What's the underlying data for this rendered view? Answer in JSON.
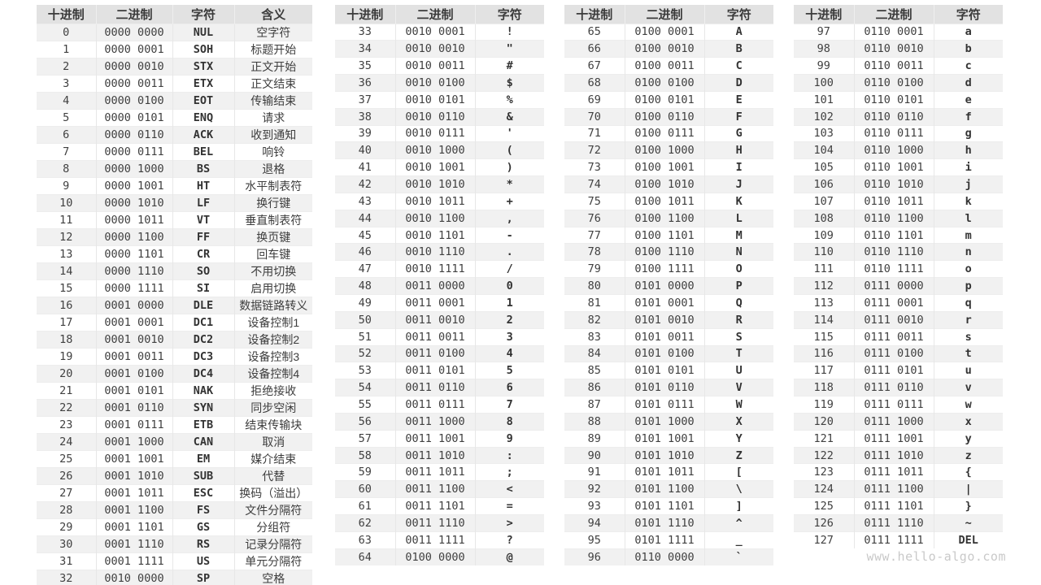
{
  "watermark": "www.hello-algo.com",
  "colors": {
    "header_bg": "#e2e2e2",
    "stripe_bg": "#f1f1f1",
    "row_bg": "#ffffff",
    "text": "#404040",
    "watermark_text": "#c9c9c9"
  },
  "cell_names": [
    "decimal-cell",
    "binary-cell",
    "char-cell",
    "meaning-cell"
  ],
  "tables": [
    {
      "headers": [
        "十进制",
        "二进制",
        "字符",
        "含义"
      ],
      "rows": [
        [
          "0",
          "0000 0000",
          "NUL",
          "空字符"
        ],
        [
          "1",
          "0000 0001",
          "SOH",
          "标题开始"
        ],
        [
          "2",
          "0000 0010",
          "STX",
          "正文开始"
        ],
        [
          "3",
          "0000 0011",
          "ETX",
          "正文结束"
        ],
        [
          "4",
          "0000 0100",
          "EOT",
          "传输结束"
        ],
        [
          "5",
          "0000 0101",
          "ENQ",
          "请求"
        ],
        [
          "6",
          "0000 0110",
          "ACK",
          "收到通知"
        ],
        [
          "7",
          "0000 0111",
          "BEL",
          "响铃"
        ],
        [
          "8",
          "0000 1000",
          "BS",
          "退格"
        ],
        [
          "9",
          "0000 1001",
          "HT",
          "水平制表符"
        ],
        [
          "10",
          "0000 1010",
          "LF",
          "换行键"
        ],
        [
          "11",
          "0000 1011",
          "VT",
          "垂直制表符"
        ],
        [
          "12",
          "0000 1100",
          "FF",
          "换页键"
        ],
        [
          "13",
          "0000 1101",
          "CR",
          "回车键"
        ],
        [
          "14",
          "0000 1110",
          "SO",
          "不用切换"
        ],
        [
          "15",
          "0000 1111",
          "SI",
          "启用切换"
        ],
        [
          "16",
          "0001 0000",
          "DLE",
          "数据链路转义"
        ],
        [
          "17",
          "0001 0001",
          "DC1",
          "设备控制1"
        ],
        [
          "18",
          "0001 0010",
          "DC2",
          "设备控制2"
        ],
        [
          "19",
          "0001 0011",
          "DC3",
          "设备控制3"
        ],
        [
          "20",
          "0001 0100",
          "DC4",
          "设备控制4"
        ],
        [
          "21",
          "0001 0101",
          "NAK",
          "拒绝接收"
        ],
        [
          "22",
          "0001 0110",
          "SYN",
          "同步空闲"
        ],
        [
          "23",
          "0001 0111",
          "ETB",
          "结束传输块"
        ],
        [
          "24",
          "0001 1000",
          "CAN",
          "取消"
        ],
        [
          "25",
          "0001 1001",
          "EM",
          "媒介结束"
        ],
        [
          "26",
          "0001 1010",
          "SUB",
          "代替"
        ],
        [
          "27",
          "0001 1011",
          "ESC",
          "换码（溢出）"
        ],
        [
          "28",
          "0001 1100",
          "FS",
          "文件分隔符"
        ],
        [
          "29",
          "0001 1101",
          "GS",
          "分组符"
        ],
        [
          "30",
          "0001 1110",
          "RS",
          "记录分隔符"
        ],
        [
          "31",
          "0001 1111",
          "US",
          "单元分隔符"
        ],
        [
          "32",
          "0010 0000",
          "SP",
          "空格"
        ]
      ]
    },
    {
      "headers": [
        "十进制",
        "二进制",
        "字符"
      ],
      "rows": [
        [
          "33",
          "0010 0001",
          "!"
        ],
        [
          "34",
          "0010 0010",
          "\""
        ],
        [
          "35",
          "0010 0011",
          "#"
        ],
        [
          "36",
          "0010 0100",
          "$"
        ],
        [
          "37",
          "0010 0101",
          "%"
        ],
        [
          "38",
          "0010 0110",
          "&"
        ],
        [
          "39",
          "0010 0111",
          "'"
        ],
        [
          "40",
          "0010 1000",
          "("
        ],
        [
          "41",
          "0010 1001",
          ")"
        ],
        [
          "42",
          "0010 1010",
          "*"
        ],
        [
          "43",
          "0010 1011",
          "+"
        ],
        [
          "44",
          "0010 1100",
          ","
        ],
        [
          "45",
          "0010 1101",
          "-"
        ],
        [
          "46",
          "0010 1110",
          "."
        ],
        [
          "47",
          "0010 1111",
          "/"
        ],
        [
          "48",
          "0011 0000",
          "0"
        ],
        [
          "49",
          "0011 0001",
          "1"
        ],
        [
          "50",
          "0011 0010",
          "2"
        ],
        [
          "51",
          "0011 0011",
          "3"
        ],
        [
          "52",
          "0011 0100",
          "4"
        ],
        [
          "53",
          "0011 0101",
          "5"
        ],
        [
          "54",
          "0011 0110",
          "6"
        ],
        [
          "55",
          "0011 0111",
          "7"
        ],
        [
          "56",
          "0011 1000",
          "8"
        ],
        [
          "57",
          "0011 1001",
          "9"
        ],
        [
          "58",
          "0011 1010",
          ":"
        ],
        [
          "59",
          "0011 1011",
          ";"
        ],
        [
          "60",
          "0011 1100",
          "<"
        ],
        [
          "61",
          "0011 1101",
          "="
        ],
        [
          "62",
          "0011 1110",
          ">"
        ],
        [
          "63",
          "0011 1111",
          "?"
        ],
        [
          "64",
          "0100 0000",
          "@"
        ]
      ]
    },
    {
      "headers": [
        "十进制",
        "二进制",
        "字符"
      ],
      "rows": [
        [
          "65",
          "0100 0001",
          "A"
        ],
        [
          "66",
          "0100 0010",
          "B"
        ],
        [
          "67",
          "0100 0011",
          "C"
        ],
        [
          "68",
          "0100 0100",
          "D"
        ],
        [
          "69",
          "0100 0101",
          "E"
        ],
        [
          "70",
          "0100 0110",
          "F"
        ],
        [
          "71",
          "0100 0111",
          "G"
        ],
        [
          "72",
          "0100 1000",
          "H"
        ],
        [
          "73",
          "0100 1001",
          "I"
        ],
        [
          "74",
          "0100 1010",
          "J"
        ],
        [
          "75",
          "0100 1011",
          "K"
        ],
        [
          "76",
          "0100 1100",
          "L"
        ],
        [
          "77",
          "0100 1101",
          "M"
        ],
        [
          "78",
          "0100 1110",
          "N"
        ],
        [
          "79",
          "0100 1111",
          "O"
        ],
        [
          "80",
          "0101 0000",
          "P"
        ],
        [
          "81",
          "0101 0001",
          "Q"
        ],
        [
          "82",
          "0101 0010",
          "R"
        ],
        [
          "83",
          "0101 0011",
          "S"
        ],
        [
          "84",
          "0101 0100",
          "T"
        ],
        [
          "85",
          "0101 0101",
          "U"
        ],
        [
          "86",
          "0101 0110",
          "V"
        ],
        [
          "87",
          "0101 0111",
          "W"
        ],
        [
          "88",
          "0101 1000",
          "X"
        ],
        [
          "89",
          "0101 1001",
          "Y"
        ],
        [
          "90",
          "0101 1010",
          "Z"
        ],
        [
          "91",
          "0101 1011",
          "["
        ],
        [
          "92",
          "0101 1100",
          "\\"
        ],
        [
          "93",
          "0101 1101",
          "]"
        ],
        [
          "94",
          "0101 1110",
          "^"
        ],
        [
          "95",
          "0101 1111",
          "_"
        ],
        [
          "96",
          "0110 0000",
          "`"
        ]
      ]
    },
    {
      "headers": [
        "十进制",
        "二进制",
        "字符"
      ],
      "rows": [
        [
          "97",
          "0110 0001",
          "a"
        ],
        [
          "98",
          "0110 0010",
          "b"
        ],
        [
          "99",
          "0110 0011",
          "c"
        ],
        [
          "100",
          "0110 0100",
          "d"
        ],
        [
          "101",
          "0110 0101",
          "e"
        ],
        [
          "102",
          "0110 0110",
          "f"
        ],
        [
          "103",
          "0110 0111",
          "g"
        ],
        [
          "104",
          "0110 1000",
          "h"
        ],
        [
          "105",
          "0110 1001",
          "i"
        ],
        [
          "106",
          "0110 1010",
          "j"
        ],
        [
          "107",
          "0110 1011",
          "k"
        ],
        [
          "108",
          "0110 1100",
          "l"
        ],
        [
          "109",
          "0110 1101",
          "m"
        ],
        [
          "110",
          "0110 1110",
          "n"
        ],
        [
          "111",
          "0110 1111",
          "o"
        ],
        [
          "112",
          "0111 0000",
          "p"
        ],
        [
          "113",
          "0111 0001",
          "q"
        ],
        [
          "114",
          "0111 0010",
          "r"
        ],
        [
          "115",
          "0111 0011",
          "s"
        ],
        [
          "116",
          "0111 0100",
          "t"
        ],
        [
          "117",
          "0111 0101",
          "u"
        ],
        [
          "118",
          "0111 0110",
          "v"
        ],
        [
          "119",
          "0111 0111",
          "w"
        ],
        [
          "120",
          "0111 1000",
          "x"
        ],
        [
          "121",
          "0111 1001",
          "y"
        ],
        [
          "122",
          "0111 1010",
          "z"
        ],
        [
          "123",
          "0111 1011",
          "{"
        ],
        [
          "124",
          "0111 1100",
          "|"
        ],
        [
          "125",
          "0111 1101",
          "}"
        ],
        [
          "126",
          "0111 1110",
          "~"
        ],
        [
          "127",
          "0111 1111",
          "DEL"
        ]
      ]
    }
  ]
}
